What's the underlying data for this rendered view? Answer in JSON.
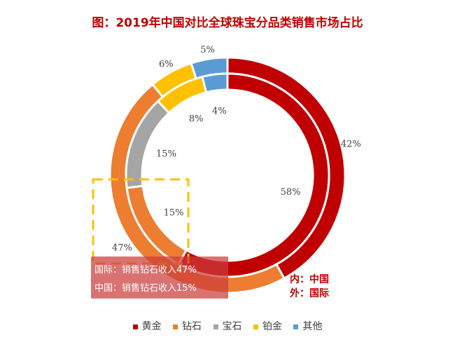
{
  "title": "图：2019年中国对比全球珠宝分品类销售市场占比",
  "chart_data": {
    "type": "pie",
    "subtype": "double-donut",
    "categories": [
      "黄金",
      "钻石",
      "宝石",
      "铂金",
      "其他"
    ],
    "colors": [
      "#c00000",
      "#ed7d31",
      "#a5a5a5",
      "#ffc000",
      "#5b9bd5"
    ],
    "series": [
      {
        "name": "中国",
        "values": [
          58,
          15,
          15,
          8,
          4
        ],
        "labels": [
          "58%",
          "15%",
          "15%",
          "8%",
          "4%"
        ]
      },
      {
        "name": "国际",
        "values": [
          42,
          47,
          0,
          6,
          5
        ],
        "labels": [
          "42%",
          "47%",
          "",
          "6%",
          "5%"
        ]
      }
    ],
    "legend_position": "bottom"
  },
  "annotation": {
    "line1": "国际：销售钻石收入47%",
    "line2": "中国：销售钻石收入15%"
  },
  "ring_note": {
    "inner": "内：中国",
    "outer": "外：国际"
  }
}
